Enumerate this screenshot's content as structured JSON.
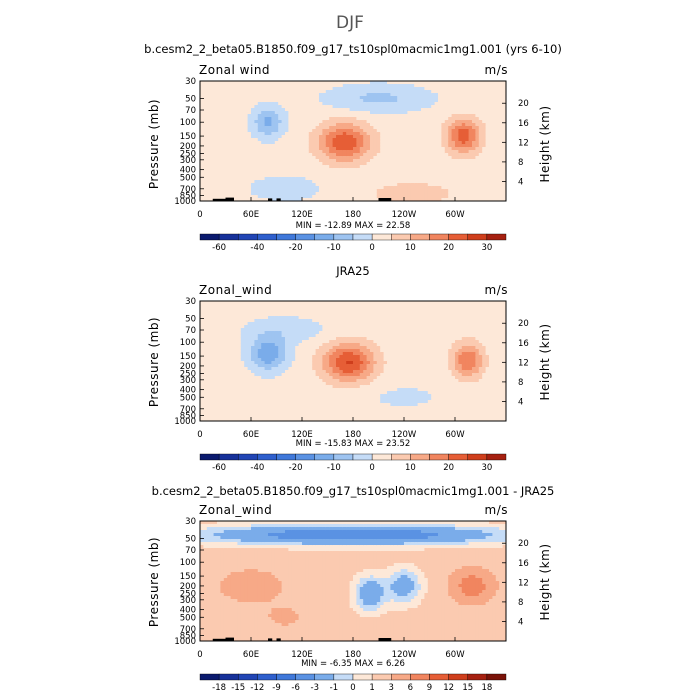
{
  "page_title": "DJF",
  "chart_data": [
    {
      "type": "heatmap",
      "title": "b.cesm2_2_beta05.B1850.f09_g17_ts10spl0macmic1mg1.001 (yrs 6-10)",
      "left_label": "Zonal wind",
      "units": "m/s",
      "ylabel": "Pressure (mb)",
      "ylabel_right": "Height (km)",
      "x_ticks": [
        "0",
        "60E",
        "120E",
        "180",
        "120W",
        "60W"
      ],
      "y_ticks": [
        "30",
        "50",
        "70",
        "100",
        "150",
        "200",
        "250",
        "300",
        "400",
        "500",
        "700",
        "850",
        "1000"
      ],
      "y_right_ticks": [
        "20",
        "16",
        "12",
        "8",
        "4"
      ],
      "min_max_text": "MIN = -12.89   MAX =  22.58",
      "colorbar_labels": [
        "-60",
        "-40",
        "-20",
        "-10",
        "0",
        "10",
        "20",
        "30"
      ],
      "levels": [
        -70,
        -60,
        -50,
        -40,
        -30,
        -20,
        -15,
        -10,
        -5,
        0,
        5,
        10,
        15,
        20,
        25,
        30,
        35
      ],
      "min": -12.89,
      "max": 22.58,
      "background_value": 2,
      "features": [
        {
          "lon": 170,
          "p": 180,
          "amp": 22.58,
          "wlon": 30,
          "wp": 0.55
        },
        {
          "lon": 310,
          "p": 150,
          "amp": 21,
          "wlon": 20,
          "wp": 0.5
        },
        {
          "lon": 80,
          "p": 100,
          "amp": -12.89,
          "wlon": 18,
          "wp": 0.45
        },
        {
          "lon": 210,
          "p": 50,
          "amp": -8,
          "wlon": 60,
          "wp": 0.4
        },
        {
          "lon": 100,
          "p": 700,
          "amp": -6,
          "wlon": 40,
          "wp": 0.35
        },
        {
          "lon": 250,
          "p": 800,
          "amp": 5,
          "wlon": 60,
          "wp": 0.4
        }
      ],
      "topography": [
        [
          15,
          35,
          0.3
        ],
        [
          30,
          40,
          0.6
        ],
        [
          80,
          85,
          0.4
        ],
        [
          90,
          95,
          0.4
        ],
        [
          210,
          225,
          0.5
        ]
      ]
    },
    {
      "type": "heatmap",
      "title": "JRA25",
      "left_label": "Zonal_wind",
      "units": "m/s",
      "ylabel": "Pressure (mb)",
      "ylabel_right": "Height (km)",
      "x_ticks": [
        "0",
        "60E",
        "120E",
        "180",
        "120W",
        "60W"
      ],
      "y_ticks": [
        "30",
        "50",
        "70",
        "100",
        "150",
        "200",
        "250",
        "300",
        "400",
        "500",
        "700",
        "850",
        "1000"
      ],
      "y_right_ticks": [
        "20",
        "16",
        "12",
        "8",
        "4"
      ],
      "min_max_text": "MIN = -15.83   MAX =  23.52",
      "colorbar_labels": [
        "-60",
        "-40",
        "-20",
        "-10",
        "0",
        "10",
        "20",
        "30"
      ],
      "levels": [
        -70,
        -60,
        -50,
        -40,
        -30,
        -20,
        -15,
        -10,
        -5,
        0,
        5,
        10,
        15,
        20,
        25,
        30,
        35
      ],
      "min": -15.83,
      "max": 23.52,
      "background_value": 2,
      "features": [
        {
          "lon": 175,
          "p": 180,
          "amp": 23.52,
          "wlon": 30,
          "wp": 0.55
        },
        {
          "lon": 315,
          "p": 170,
          "amp": 18,
          "wlon": 18,
          "wp": 0.5
        },
        {
          "lon": 80,
          "p": 140,
          "amp": -15.83,
          "wlon": 22,
          "wp": 0.5
        },
        {
          "lon": 100,
          "p": 70,
          "amp": -5,
          "wlon": 50,
          "wp": 0.4
        },
        {
          "lon": 240,
          "p": 500,
          "amp": -3,
          "wlon": 50,
          "wp": 0.4
        }
      ],
      "topography": []
    },
    {
      "type": "heatmap",
      "title": "b.cesm2_2_beta05.B1850.f09_g17_ts10spl0macmic1mg1.001 - JRA25",
      "left_label": "Zonal_wind",
      "units": "m/s",
      "ylabel": "Pressure (mb)",
      "ylabel_right": "Height (km)",
      "x_ticks": [
        "0",
        "60E",
        "120E",
        "180",
        "120W",
        "60W"
      ],
      "y_ticks": [
        "30",
        "50",
        "70",
        "100",
        "150",
        "200",
        "250",
        "300",
        "400",
        "500",
        "700",
        "850",
        "1000"
      ],
      "y_right_ticks": [
        "20",
        "16",
        "12",
        "8",
        "4"
      ],
      "min_max_text": "MIN = -6.35   MAX =  6.26",
      "colorbar_labels": [
        "-18",
        "-15",
        "-12",
        "-9",
        "-6",
        "-3",
        "-1",
        "0",
        "1",
        "3",
        "6",
        "9",
        "12",
        "15",
        "18"
      ],
      "levels": [
        -21,
        -18,
        -15,
        -12,
        -9,
        -6,
        -3,
        -1,
        0,
        1,
        3,
        6,
        9,
        12,
        15,
        18,
        21
      ],
      "min": -6.35,
      "max": 6.26,
      "background_value": 1.5,
      "features": [
        {
          "lon": 180,
          "p": 45,
          "amp": -6.35,
          "wlon": 170,
          "wp": 0.28
        },
        {
          "lon": 60,
          "p": 200,
          "amp": 3.5,
          "wlon": 40,
          "wp": 0.5
        },
        {
          "lon": 320,
          "p": 200,
          "amp": 6.26,
          "wlon": 25,
          "wp": 0.5
        },
        {
          "lon": 200,
          "p": 250,
          "amp": -4,
          "wlon": 18,
          "wp": 0.5
        },
        {
          "lon": 240,
          "p": 200,
          "amp": -3.5,
          "wlon": 20,
          "wp": 0.5
        },
        {
          "lon": 100,
          "p": 500,
          "amp": 2,
          "wlon": 30,
          "wp": 0.4
        }
      ],
      "topography": [
        [
          15,
          35,
          0.3
        ],
        [
          30,
          40,
          0.6
        ],
        [
          80,
          85,
          0.4
        ],
        [
          90,
          95,
          0.4
        ],
        [
          210,
          225,
          0.5
        ]
      ]
    }
  ],
  "colors": {
    "absolute": [
      "#0a1a6e",
      "#16319a",
      "#2145b5",
      "#2e5fcd",
      "#3f78da",
      "#5a92e3",
      "#7aacea",
      "#9ec4f1",
      "#c5dcf7",
      "#fde8d8",
      "#fbcab0",
      "#f7a987",
      "#f1855f",
      "#e65e36",
      "#cf3e1c",
      "#a62010"
    ],
    "difference": [
      "#0a1a6e",
      "#16319a",
      "#2145b5",
      "#2e5fcd",
      "#3f78da",
      "#5a92e3",
      "#7aacea",
      "#c5dcf7",
      "#fde8d8",
      "#fbcab0",
      "#f7a987",
      "#f1855f",
      "#e65e36",
      "#cf3e1c",
      "#a62010",
      "#7a1208"
    ]
  }
}
